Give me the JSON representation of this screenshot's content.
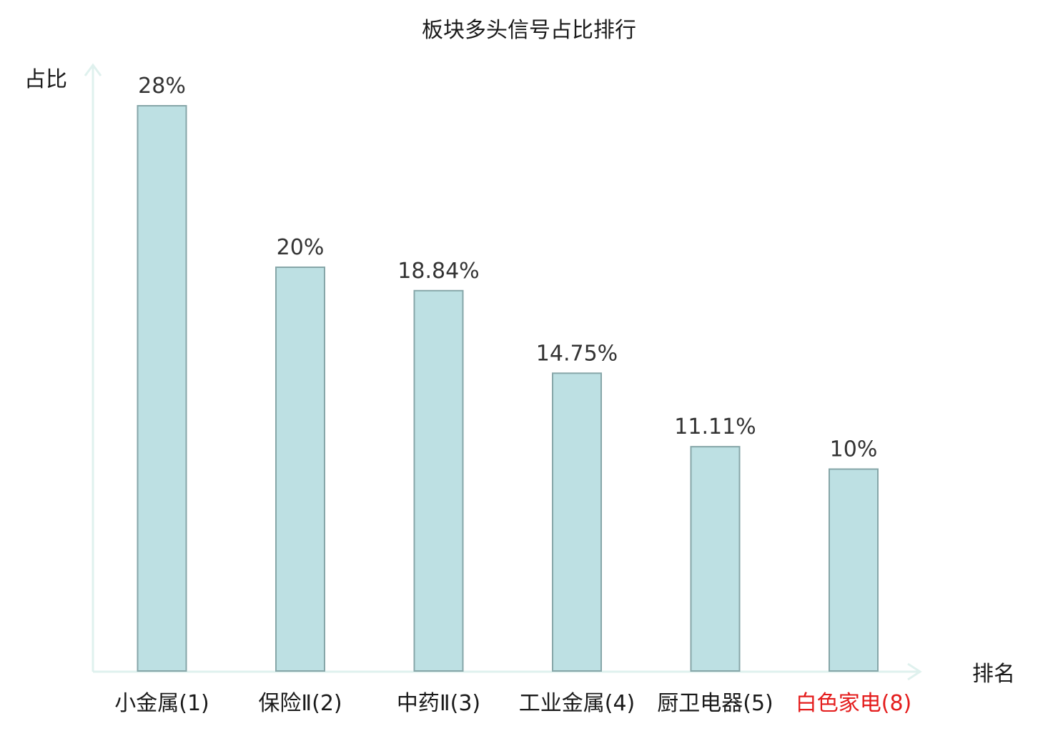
{
  "chart_data": {
    "type": "bar",
    "title": "板块多头信号占比排行",
    "ylabel": "占比",
    "xlabel": "排名",
    "ylim": [
      0,
      30
    ],
    "categories": [
      "小金属(1)",
      "保险Ⅱ(2)",
      "中药Ⅱ(3)",
      "工业金属(4)",
      "厨卫电器(5)",
      "白色家电(8)"
    ],
    "values": [
      28,
      20,
      18.84,
      14.75,
      11.11,
      10
    ],
    "data_labels": [
      "28%",
      "20%",
      "18.84%",
      "14.75%",
      "11.11%",
      "10%"
    ],
    "highlight_index": 5,
    "grid": false,
    "legend": "none",
    "colors": {
      "bar_fill": "#bde0e3",
      "bar_stroke": "#86a6a8",
      "axis": "#dff1ee",
      "label_text": "#1a1a1a",
      "value_text": "#333333",
      "highlight_text": "#e41c1c"
    }
  }
}
